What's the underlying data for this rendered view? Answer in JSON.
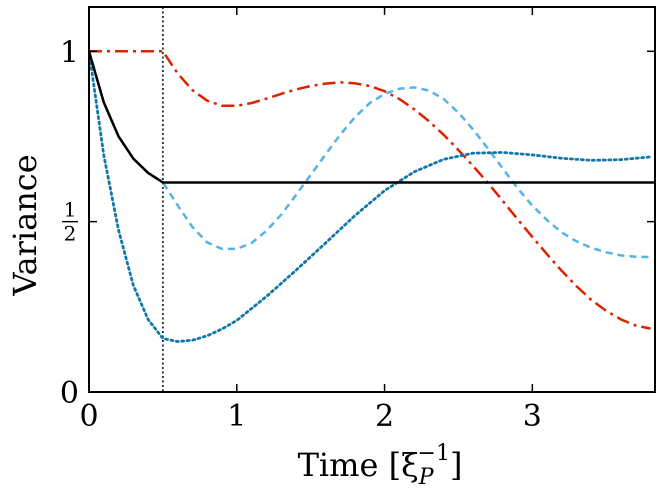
{
  "chart_data": {
    "type": "line",
    "title": "",
    "xlabel": "Time [ξ_P^{-1}]",
    "xlabel_parts": {
      "main": "Time [ξ",
      "sub": "P",
      "sup": "−1",
      "close": "]"
    },
    "ylabel": "Variance",
    "xlim": [
      0,
      3.83
    ],
    "ylim": [
      0,
      1.13
    ],
    "xticks": [
      0,
      1,
      2,
      3
    ],
    "xtick_labels": [
      "0",
      "1",
      "2",
      "3"
    ],
    "yticks": [
      0,
      0.5,
      1
    ],
    "ytick_labels": [
      "0",
      "½",
      "1"
    ],
    "ytick_frac": {
      "num": "1",
      "den": "2"
    },
    "grid": false,
    "legend": "none",
    "vline": {
      "x": 0.5,
      "color": "#000000",
      "style": "dotted"
    },
    "series": [
      {
        "color": "#dd2200",
        "style": "dashdot",
        "x": [
          0,
          0.5,
          0.6,
          0.7,
          0.8,
          0.9,
          1.0,
          1.1,
          1.2,
          1.3,
          1.4,
          1.5,
          1.6,
          1.7,
          1.8,
          1.9,
          2.0,
          2.1,
          2.2,
          2.3,
          2.4,
          2.5,
          2.6,
          2.7,
          2.8,
          2.9,
          3.0,
          3.1,
          3.2,
          3.3,
          3.4,
          3.5,
          3.6,
          3.7,
          3.8
        ],
        "y": [
          1.0,
          1.0,
          0.935,
          0.886,
          0.855,
          0.84,
          0.84,
          0.848,
          0.861,
          0.875,
          0.888,
          0.898,
          0.905,
          0.909,
          0.906,
          0.898,
          0.883,
          0.86,
          0.83,
          0.795,
          0.755,
          0.71,
          0.663,
          0.613,
          0.561,
          0.507,
          0.455,
          0.404,
          0.355,
          0.31,
          0.27,
          0.238,
          0.213,
          0.195,
          0.186
        ]
      },
      {
        "color": "#55b3e6",
        "style": "dashed",
        "x": [
          0,
          0.1,
          0.2,
          0.3,
          0.4,
          0.5,
          0.6,
          0.7,
          0.8,
          0.9,
          1.0,
          1.1,
          1.2,
          1.3,
          1.4,
          1.5,
          1.6,
          1.7,
          1.8,
          1.9,
          2.0,
          2.1,
          2.2,
          2.3,
          2.4,
          2.5,
          2.6,
          2.7,
          2.8,
          2.9,
          3.0,
          3.1,
          3.2,
          3.3,
          3.4,
          3.5,
          3.6,
          3.7,
          3.8
        ],
        "y": [
          1.0,
          0.85,
          0.75,
          0.685,
          0.643,
          0.615,
          0.548,
          0.484,
          0.439,
          0.42,
          0.42,
          0.437,
          0.473,
          0.52,
          0.578,
          0.637,
          0.697,
          0.755,
          0.807,
          0.848,
          0.875,
          0.89,
          0.894,
          0.885,
          0.86,
          0.82,
          0.77,
          0.714,
          0.656,
          0.598,
          0.547,
          0.504,
          0.468,
          0.442,
          0.423,
          0.41,
          0.401,
          0.397,
          0.396
        ]
      },
      {
        "color": "#1177aa",
        "style": "dotted",
        "x": [
          0,
          0.1,
          0.2,
          0.3,
          0.4,
          0.5,
          0.6,
          0.7,
          0.8,
          0.9,
          1.0,
          1.2,
          1.4,
          1.6,
          1.8,
          2.0,
          2.2,
          2.4,
          2.6,
          2.8,
          3.0,
          3.2,
          3.4,
          3.6,
          3.8
        ],
        "y": [
          1.0,
          0.695,
          0.475,
          0.313,
          0.213,
          0.157,
          0.148,
          0.152,
          0.165,
          0.185,
          0.21,
          0.28,
          0.357,
          0.437,
          0.518,
          0.591,
          0.646,
          0.683,
          0.701,
          0.703,
          0.696,
          0.686,
          0.68,
          0.682,
          0.69
        ]
      },
      {
        "color": "#000000",
        "style": "solid",
        "x": [
          0,
          0.1,
          0.2,
          0.3,
          0.4,
          0.5,
          0.6,
          1.0,
          2.0,
          3.0,
          3.83
        ],
        "y": [
          1.0,
          0.85,
          0.75,
          0.685,
          0.643,
          0.615,
          0.615,
          0.615,
          0.615,
          0.615,
          0.615
        ]
      }
    ]
  }
}
